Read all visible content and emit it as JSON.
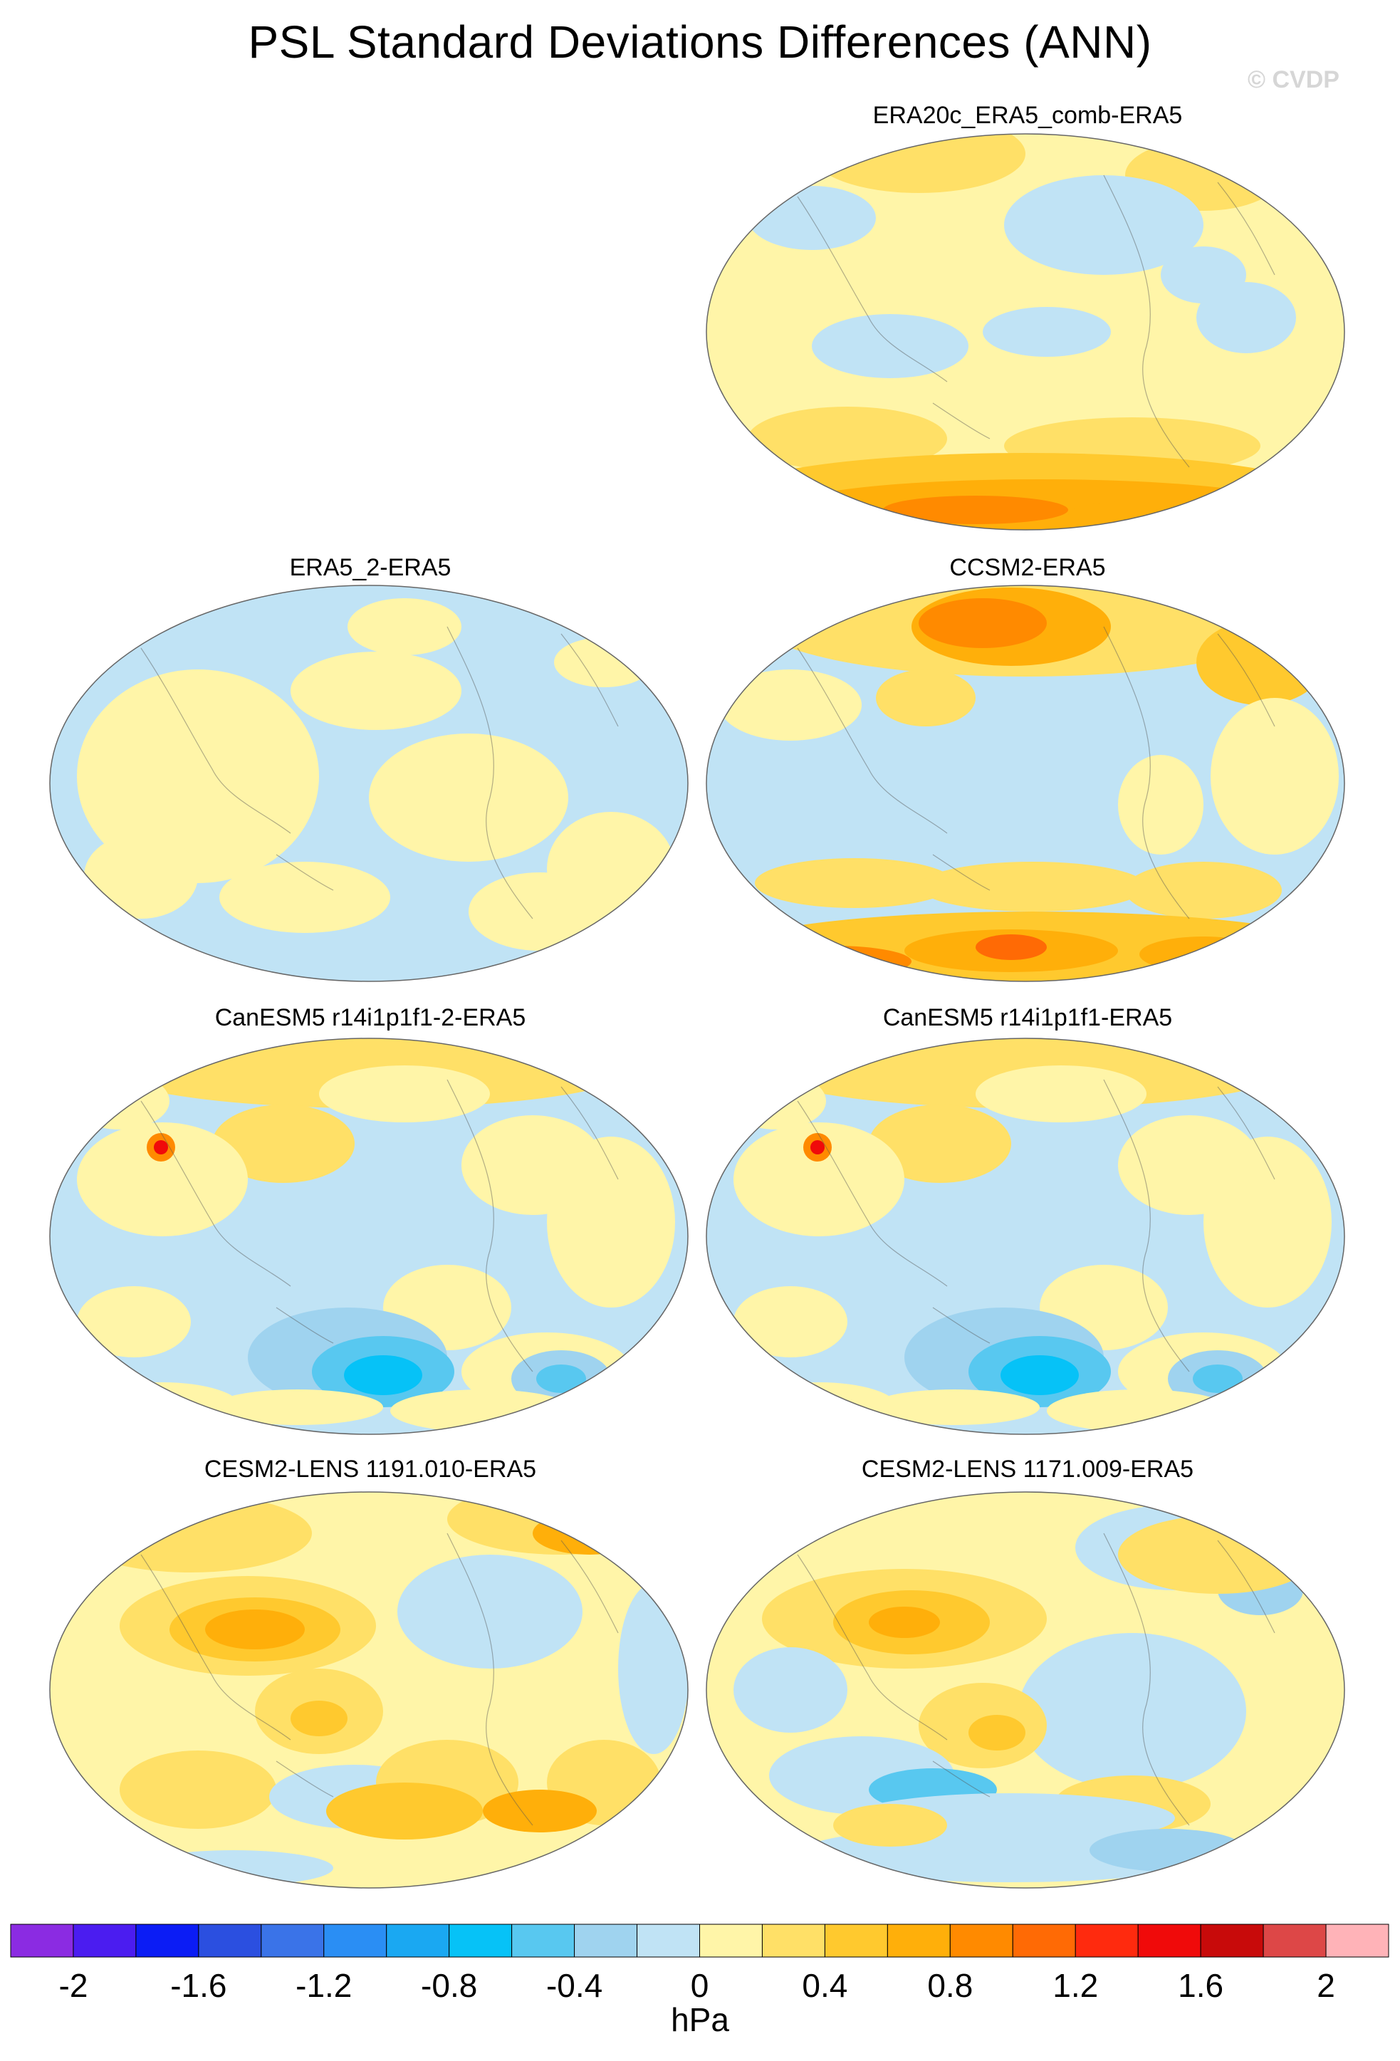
{
  "title": "PSL Standard Deviations Differences (ANN)",
  "watermark": "© CVDP",
  "panels": [
    {
      "label": "ERA20c_ERA5_comb-ERA5",
      "pattern": "era20c"
    },
    {
      "label": "ERA5_2-ERA5",
      "pattern": "era5_2"
    },
    {
      "label": "CCSM2-ERA5",
      "pattern": "ccsm2"
    },
    {
      "label": "CanESM5 r14i1p1f1-2-ERA5",
      "pattern": "canesm"
    },
    {
      "label": "CanESM5 r14i1p1f1-ERA5",
      "pattern": "canesm"
    },
    {
      "label": "CESM2-LENS 1191.010-ERA5",
      "pattern": "cesm_a"
    },
    {
      "label": "CESM2-LENS 1171.009-ERA5",
      "pattern": "cesm_b"
    }
  ],
  "colorbar": {
    "unit": "hPa",
    "colors": [
      "#8b2be2",
      "#4b1cf0",
      "#0b1cf5",
      "#2b4fe0",
      "#3a73e8",
      "#2a8ef4",
      "#1aa8f2",
      "#06c2f7",
      "#58c8f0",
      "#9fd3ef",
      "#c0e3f5",
      "#fff5a8",
      "#ffe067",
      "#ffc92e",
      "#ffaf0a",
      "#ff8a00",
      "#ff6a05",
      "#ff2a0e",
      "#f00a0a",
      "#c80a0a",
      "#dd4747",
      "#ffb3b8"
    ],
    "tick_labels": [
      "-2",
      "-1.6",
      "-1.2",
      "-0.8",
      "-0.4",
      "0",
      "0.4",
      "0.8",
      "1.2",
      "1.6",
      "2"
    ]
  }
}
